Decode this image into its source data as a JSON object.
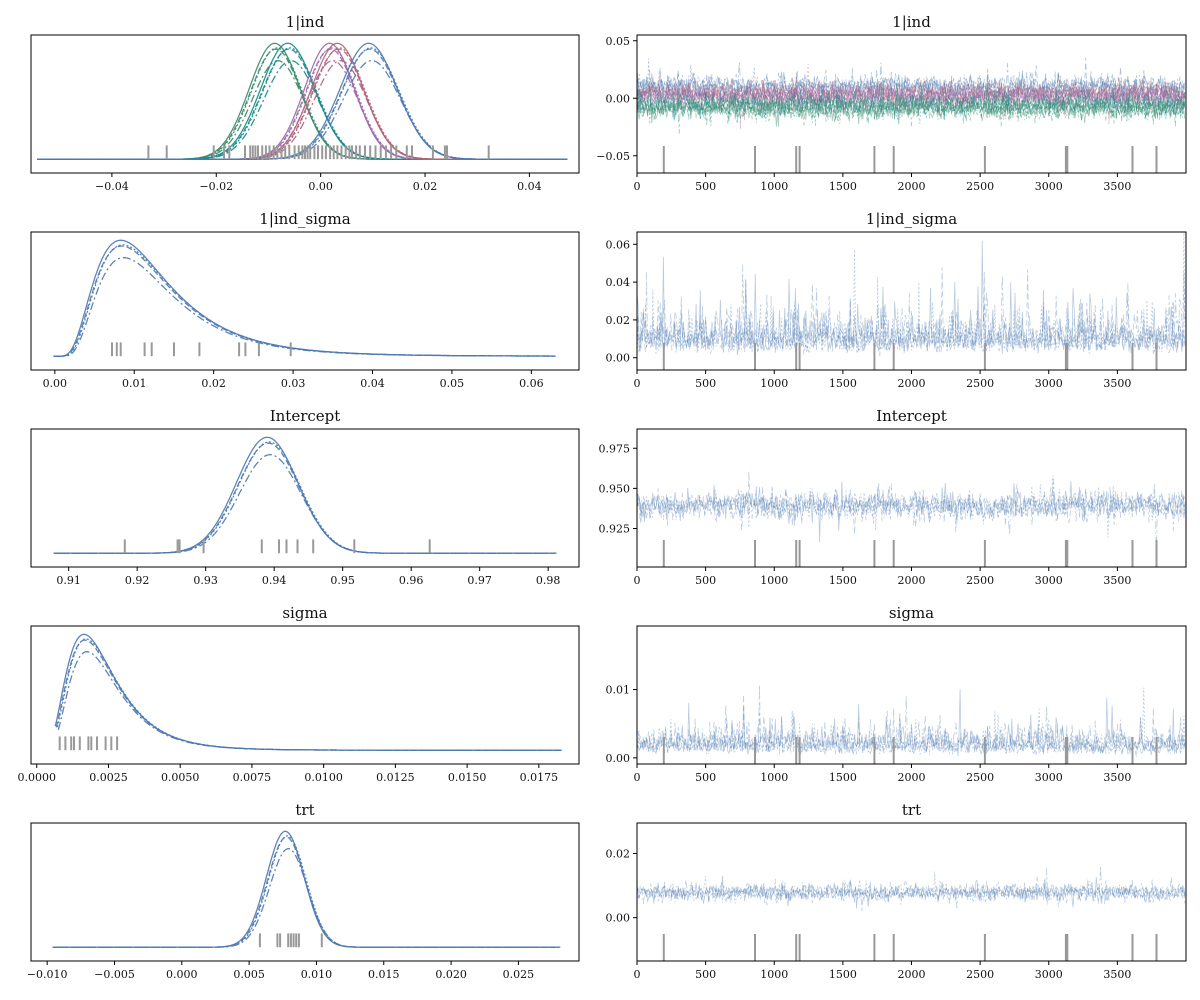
{
  "figure": {
    "background": "#ffffff",
    "rug_color": "#999999"
  },
  "chart_data": [
    {
      "type": "line",
      "subtype": "kde",
      "title": "1|ind",
      "row": 0,
      "col": 0,
      "xlim": [
        -0.0555,
        0.0495
      ],
      "xticks": [
        -0.04,
        -0.02,
        0.0,
        0.02,
        0.04
      ],
      "xtick_labels": [
        "−0.04",
        "−0.02",
        "0.00",
        "0.02",
        "0.04"
      ],
      "x_range": [
        -0.054,
        0.047
      ],
      "series": [
        {
          "mean": -0.0085,
          "sd": 0.0049,
          "color": "#3a8a6a"
        },
        {
          "mean": -0.006,
          "sd": 0.0052,
          "color": "#178a8a"
        },
        {
          "mean": 0.002,
          "sd": 0.0048,
          "color": "#9b6aa8"
        },
        {
          "mean": 0.0035,
          "sd": 0.005,
          "color": "#b06378"
        },
        {
          "mean": 0.0095,
          "sd": 0.0055,
          "color": "#4c78b0"
        }
      ],
      "rug": [
        -0.033,
        -0.0295,
        -0.0205,
        -0.0185,
        -0.0175,
        -0.0145,
        -0.0135,
        -0.013,
        -0.0125,
        -0.012,
        -0.0112,
        -0.0105,
        -0.0098,
        -0.009,
        -0.0083,
        -0.0075,
        -0.0068,
        -0.006,
        -0.005,
        -0.0042,
        -0.0035,
        -0.003,
        -0.0025,
        -0.002,
        -0.0012,
        -0.0005,
        0.0003,
        0.001,
        0.0018,
        0.0025,
        0.0032,
        0.004,
        0.0048,
        0.0055,
        0.006,
        0.0068,
        0.0075,
        0.0085,
        0.0095,
        0.0105,
        0.0115,
        0.0125,
        0.0135,
        0.0145,
        0.0165,
        0.0175,
        0.0215,
        0.0238,
        0.0242,
        0.0322
      ]
    },
    {
      "type": "line",
      "subtype": "trace",
      "title": "1|ind",
      "row": 0,
      "col": 1,
      "xlim": [
        0,
        4000
      ],
      "ylim": [
        -0.065,
        0.055
      ],
      "xticks": [
        0,
        500,
        1000,
        1500,
        2000,
        2500,
        3000,
        3500
      ],
      "xtick_labels": [
        "0",
        "500",
        "1000",
        "1500",
        "2000",
        "2500",
        "3000",
        "3500"
      ],
      "yticks": [
        -0.05,
        0.0,
        0.05
      ],
      "ytick_labels": [
        "−0.05",
        "0.00",
        "0.05"
      ],
      "series": [
        {
          "mean": 0.0095,
          "sd": 0.0055,
          "color": "#4c78b0"
        },
        {
          "mean": 0.0035,
          "sd": 0.005,
          "color": "#b06378"
        },
        {
          "mean": 0.002,
          "sd": 0.0048,
          "color": "#9b6aa8"
        },
        {
          "mean": -0.006,
          "sd": 0.0052,
          "color": "#178a8a"
        },
        {
          "mean": -0.0085,
          "sd": 0.0049,
          "color": "#3a8a6a"
        }
      ],
      "divergences": [
        195,
        860,
        1160,
        1185,
        1730,
        1870,
        2535,
        3125,
        3135,
        3610,
        3785
      ]
    },
    {
      "type": "line",
      "subtype": "kde",
      "title": "1|ind_sigma",
      "row": 1,
      "col": 0,
      "xlim": [
        -0.003,
        0.066
      ],
      "xticks": [
        0.0,
        0.01,
        0.02,
        0.03,
        0.04,
        0.05,
        0.06
      ],
      "xtick_labels": [
        "0.00",
        "0.01",
        "0.02",
        "0.03",
        "0.04",
        "0.05",
        "0.06"
      ],
      "x_range": [
        0.0,
        0.063
      ],
      "distribution": "lognormal",
      "mode": 0.0085,
      "log_sd": 0.55,
      "series": [
        {
          "color": "#4c78b0"
        }
      ],
      "rug": [
        0.0072,
        0.0078,
        0.0083,
        0.0113,
        0.0122,
        0.015,
        0.0182,
        0.0232,
        0.024,
        0.0257,
        0.0297
      ]
    },
    {
      "type": "line",
      "subtype": "trace",
      "title": "1|ind_sigma",
      "row": 1,
      "col": 1,
      "xlim": [
        0,
        4000
      ],
      "ylim": [
        -0.0065,
        0.0665
      ],
      "xticks": [
        0,
        500,
        1000,
        1500,
        2000,
        2500,
        3000,
        3500
      ],
      "xtick_labels": [
        "0",
        "500",
        "1000",
        "1500",
        "2000",
        "2500",
        "3000",
        "3500"
      ],
      "yticks": [
        0.0,
        0.02,
        0.04,
        0.06
      ],
      "ytick_labels": [
        "0.00",
        "0.02",
        "0.04",
        "0.06"
      ],
      "distribution": "lognormal",
      "mode": 0.0085,
      "log_sd": 0.55,
      "series": [
        {
          "color": "#4c78b0"
        }
      ],
      "divergences": [
        195,
        860,
        1160,
        1185,
        1730,
        1870,
        2535,
        3125,
        3135,
        3610,
        3785
      ]
    },
    {
      "type": "line",
      "subtype": "kde",
      "title": "Intercept",
      "row": 2,
      "col": 0,
      "xlim": [
        0.9045,
        0.9845
      ],
      "xticks": [
        0.91,
        0.92,
        0.93,
        0.94,
        0.95,
        0.96,
        0.97,
        0.98
      ],
      "xtick_labels": [
        "0.91",
        "0.92",
        "0.93",
        "0.94",
        "0.95",
        "0.96",
        "0.97",
        "0.98"
      ],
      "x_range": [
        0.908,
        0.981
      ],
      "distribution": "normal",
      "mean": 0.9392,
      "sd": 0.0045,
      "series": [
        {
          "color": "#4c78b0"
        }
      ],
      "rug": [
        0.9182,
        0.9259,
        0.9262,
        0.9297,
        0.9382,
        0.9407,
        0.9418,
        0.9434,
        0.9457,
        0.9517,
        0.9627
      ]
    },
    {
      "type": "line",
      "subtype": "trace",
      "title": "Intercept",
      "row": 2,
      "col": 1,
      "xlim": [
        0,
        4000
      ],
      "ylim": [
        0.901,
        0.987
      ],
      "xticks": [
        0,
        500,
        1000,
        1500,
        2000,
        2500,
        3000,
        3500
      ],
      "xtick_labels": [
        "0",
        "500",
        "1000",
        "1500",
        "2000",
        "2500",
        "3000",
        "3500"
      ],
      "yticks": [
        0.925,
        0.95,
        0.975
      ],
      "ytick_labels": [
        "0.925",
        "0.950",
        "0.975"
      ],
      "distribution": "normal",
      "mean": 0.9392,
      "sd": 0.0045,
      "series": [
        {
          "color": "#4c78b0"
        }
      ],
      "divergences": [
        195,
        860,
        1160,
        1185,
        1730,
        1870,
        2535,
        3125,
        3135,
        3610,
        3785
      ]
    },
    {
      "type": "line",
      "subtype": "kde",
      "title": "sigma",
      "row": 3,
      "col": 0,
      "xlim": [
        -0.0002,
        0.0189
      ],
      "xticks": [
        0.0,
        0.0025,
        0.005,
        0.0075,
        0.01,
        0.0125,
        0.015,
        0.0175
      ],
      "xtick_labels": [
        "0.0000",
        "0.0025",
        "0.0050",
        "0.0075",
        "0.0100",
        "0.0125",
        "0.0150",
        "0.0175"
      ],
      "x_range": [
        0.0007,
        0.0183
      ],
      "distribution": "lognormal",
      "mode": 0.0017,
      "log_sd": 0.5,
      "series": [
        {
          "color": "#4c78b0"
        }
      ],
      "rug": [
        0.0008,
        0.001,
        0.0012,
        0.0013,
        0.0015,
        0.0018,
        0.0019,
        0.0021,
        0.0024,
        0.0026,
        0.0028
      ]
    },
    {
      "type": "line",
      "subtype": "trace",
      "title": "sigma",
      "row": 3,
      "col": 1,
      "xlim": [
        0,
        4000
      ],
      "ylim": [
        -0.0009,
        0.0193
      ],
      "xticks": [
        0,
        500,
        1000,
        1500,
        2000,
        2500,
        3000,
        3500
      ],
      "xtick_labels": [
        "0",
        "500",
        "1000",
        "1500",
        "2000",
        "2500",
        "3000",
        "3500"
      ],
      "yticks": [
        0.0,
        0.01
      ],
      "ytick_labels": [
        "0.00",
        "0.01"
      ],
      "distribution": "lognormal",
      "mode": 0.0017,
      "log_sd": 0.5,
      "series": [
        {
          "color": "#4c78b0"
        }
      ],
      "divergences": [
        195,
        860,
        1160,
        1185,
        1730,
        1870,
        2535,
        3125,
        3135,
        3610,
        3785
      ]
    },
    {
      "type": "line",
      "subtype": "kde",
      "title": "trt",
      "row": 4,
      "col": 0,
      "xlim": [
        -0.0112,
        0.0295
      ],
      "xticks": [
        -0.01,
        -0.005,
        0.0,
        0.005,
        0.01,
        0.015,
        0.02,
        0.025
      ],
      "xtick_labels": [
        "−0.010",
        "−0.005",
        "0.000",
        "0.005",
        "0.010",
        "0.015",
        "0.020",
        "0.025"
      ],
      "x_range": [
        -0.0095,
        0.028
      ],
      "distribution": "normal",
      "mean": 0.0078,
      "sd": 0.0014,
      "series": [
        {
          "color": "#4c78b0"
        }
      ],
      "rug": [
        0.0058,
        0.0071,
        0.0073,
        0.0079,
        0.0081,
        0.0083,
        0.0085,
        0.0087,
        0.0104
      ]
    },
    {
      "type": "line",
      "subtype": "trace",
      "title": "trt",
      "row": 4,
      "col": 1,
      "xlim": [
        0,
        4000
      ],
      "ylim": [
        -0.0135,
        0.0295
      ],
      "xticks": [
        0,
        500,
        1000,
        1500,
        2000,
        2500,
        3000,
        3500
      ],
      "xtick_labels": [
        "0",
        "500",
        "1000",
        "1500",
        "2000",
        "2500",
        "3000",
        "3500"
      ],
      "yticks": [
        0.0,
        0.02
      ],
      "ytick_labels": [
        "0.00",
        "0.02"
      ],
      "distribution": "normal",
      "mean": 0.0078,
      "sd": 0.0014,
      "series": [
        {
          "color": "#4c78b0"
        }
      ],
      "divergences": [
        195,
        860,
        1160,
        1185,
        1730,
        1870,
        2535,
        3125,
        3135,
        3610,
        3785
      ]
    }
  ]
}
